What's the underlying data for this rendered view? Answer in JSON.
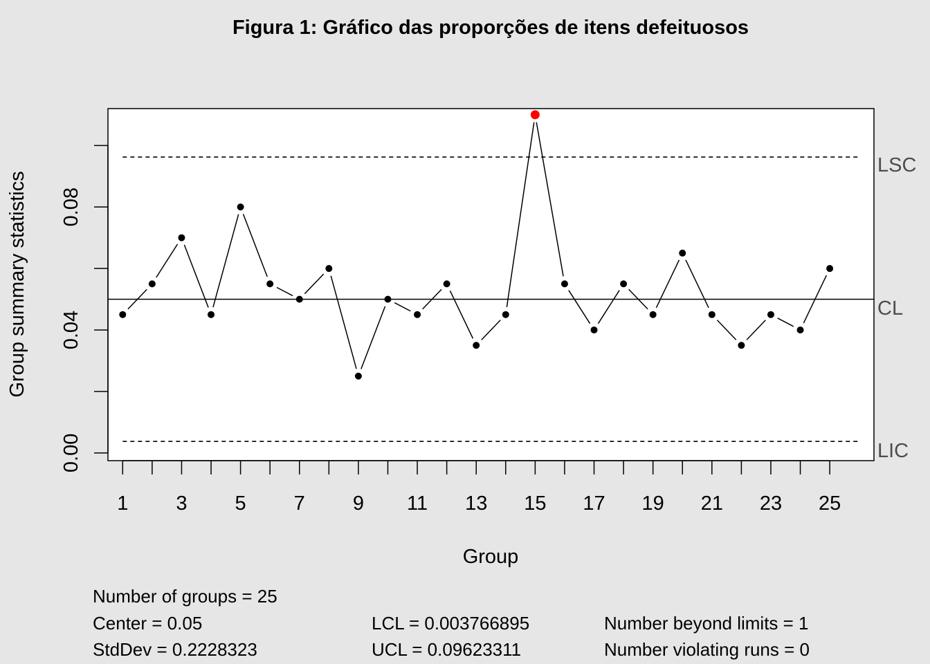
{
  "colors": {
    "background": "#e6e6e6",
    "plot_background": "#ffffff",
    "point": "#000000",
    "violation_point": "#ff0000",
    "limit_label": "#4d4d4d"
  },
  "chart_data": {
    "type": "line",
    "title": "Figura 1: Gráfico das proporções de itens defeituosos",
    "xlabel": "Group",
    "ylabel": "Group summary statistics",
    "xlim": [
      0.5,
      26.5
    ],
    "ylim": [
      -0.0025,
      0.112
    ],
    "x_ticks": [
      1,
      2,
      3,
      4,
      5,
      6,
      7,
      8,
      9,
      10,
      11,
      12,
      13,
      14,
      15,
      16,
      17,
      18,
      19,
      20,
      21,
      22,
      23,
      24,
      25
    ],
    "x_tick_labels": [
      "1",
      "3",
      "5",
      "7",
      "9",
      "11",
      "13",
      "15",
      "17",
      "19",
      "21",
      "23",
      "25"
    ],
    "x_tick_label_values": [
      1,
      3,
      5,
      7,
      9,
      11,
      13,
      15,
      17,
      19,
      21,
      23,
      25
    ],
    "y_ticks": [
      0,
      0.02,
      0.04,
      0.06,
      0.08,
      0.1
    ],
    "y_tick_labels": [
      "0.00",
      "0.04",
      "0.08"
    ],
    "y_tick_label_values": [
      0,
      0.04,
      0.08
    ],
    "grid": false,
    "series": [
      {
        "x": [
          1,
          2,
          3,
          4,
          5,
          6,
          7,
          8,
          9,
          10,
          11,
          12,
          13,
          14,
          15,
          16,
          17,
          18,
          19,
          20,
          21,
          22,
          23,
          24,
          25
        ],
        "values": [
          0.045,
          0.055,
          0.07,
          0.045,
          0.08,
          0.055,
          0.05,
          0.06,
          0.025,
          0.05,
          0.045,
          0.055,
          0.035,
          0.045,
          0.11,
          0.055,
          0.04,
          0.055,
          0.045,
          0.065,
          0.045,
          0.035,
          0.045,
          0.04,
          0.06
        ]
      }
    ],
    "beyond_limits_groups": [
      15
    ],
    "center_line": {
      "value": 0.05,
      "label": "CL"
    },
    "upper_limit": {
      "value": 0.09623311,
      "label": "LSC"
    },
    "lower_limit": {
      "value": 0.003766895,
      "label": "LIC"
    }
  },
  "stats": {
    "number_of_groups": "Number of groups = 25",
    "center": "Center = 0.05",
    "stddev": "StdDev = 0.2228323",
    "lcl": "LCL = 0.003766895",
    "ucl": "UCL = 0.09623311",
    "beyond_limits": "Number beyond limits = 1",
    "violating_runs": "Number violating runs = 0"
  }
}
